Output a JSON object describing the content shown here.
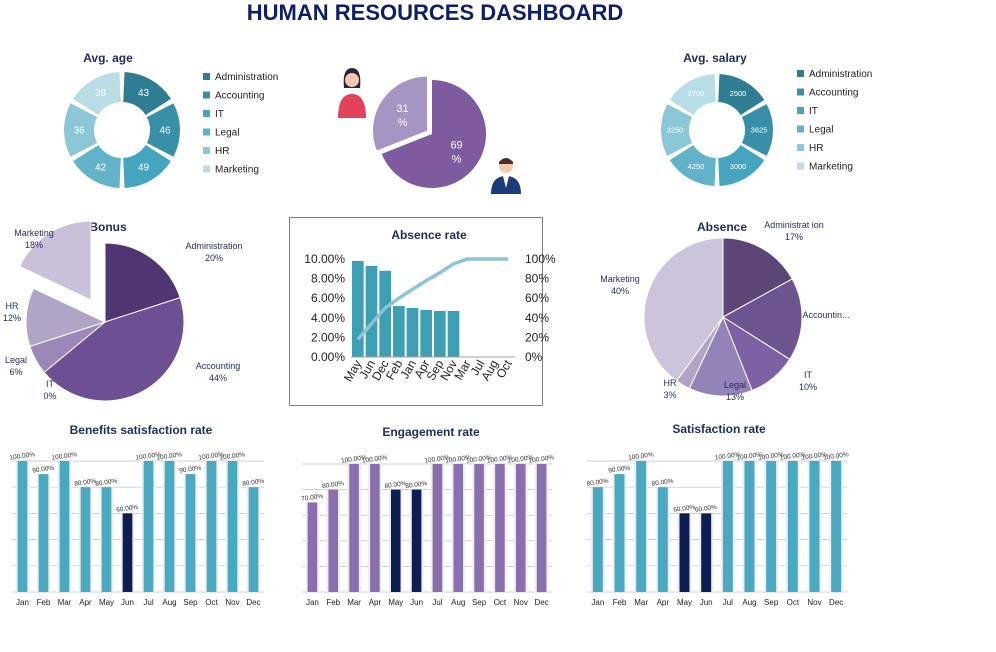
{
  "dashboard": {
    "title": "HUMAN RESOURCES DASHBOARD"
  },
  "chart_data": [
    {
      "id": "avg_age",
      "type": "doughnut",
      "title": "Avg. age",
      "categories": [
        "Administration",
        "Accounting",
        "IT",
        "Legal",
        "HR",
        "Marketing"
      ],
      "values": [
        43,
        46,
        49,
        42,
        36,
        38
      ],
      "colors": [
        "#2f7d93",
        "#3a8fa8",
        "#45a5bf",
        "#62b3c9",
        "#8cc7d7",
        "#b9dde7"
      ],
      "legend": "right"
    },
    {
      "id": "gender",
      "type": "pie",
      "title": "",
      "values": [
        69,
        31
      ],
      "labels": [
        "69 %",
        "31 %"
      ],
      "colors": [
        "#7d5b9e",
        "#a694c2"
      ]
    },
    {
      "id": "avg_salary",
      "type": "doughnut",
      "title": "Avg. salary",
      "categories": [
        "Administration",
        "Accounting",
        "IT",
        "Legal",
        "HR",
        "Marketing"
      ],
      "values": [
        2500,
        3625,
        3000,
        4250,
        3250,
        2700
      ],
      "colors": [
        "#2f7d93",
        "#3a8fa8",
        "#45a5bf",
        "#62b3c9",
        "#8cc7d7",
        "#b9dde7"
      ],
      "legend": "right"
    },
    {
      "id": "bonus",
      "type": "pie",
      "title": "Bonus",
      "categories": [
        "Administration",
        "Accounting",
        "IT",
        "Legal",
        "HR",
        "Marketing"
      ],
      "values": [
        20,
        44,
        0,
        6,
        12,
        18
      ],
      "labels": [
        "20%",
        "44%",
        "0%",
        "6%",
        "12%",
        "18%"
      ],
      "colors": [
        "#4f3572",
        "#6d4f94",
        "#82659f",
        "#9c88b8",
        "#b1a5c7",
        "#c9c0d9"
      ]
    },
    {
      "id": "absence_rate",
      "type": "bar",
      "title": "Absence rate",
      "categories": [
        "May",
        "Jun",
        "Dec",
        "Feb",
        "Jan",
        "Apr",
        "Sep",
        "Nov",
        "Mar",
        "Jul",
        "Aug",
        "Oct"
      ],
      "values": [
        9.8,
        9.3,
        8.8,
        5.2,
        5.0,
        4.8,
        4.7,
        4.7,
        0,
        0,
        0,
        0
      ],
      "cumulative": [
        18,
        34,
        50,
        60,
        69,
        78,
        86,
        95,
        100,
        100,
        100,
        100
      ],
      "yticks_left": [
        "0.00%",
        "2.00%",
        "4.00%",
        "6.00%",
        "8.00%",
        "10.00%"
      ],
      "yticks_right": [
        "0%",
        "20%",
        "40%",
        "60%",
        "80%",
        "100%"
      ],
      "ylim": [
        0,
        10
      ],
      "y2lim": [
        0,
        100
      ],
      "bar_color": "#3e9eb3",
      "line_color": "#8cc3d6"
    },
    {
      "id": "absence",
      "type": "pie",
      "title": "Absence",
      "categories": [
        "Administrat ion",
        "Accountin...",
        "IT",
        "Legal",
        "HR",
        "Marketing"
      ],
      "values": [
        17,
        17,
        10,
        13,
        3,
        40
      ],
      "labels": [
        "17%",
        "",
        "10%",
        "13%",
        "3%",
        "40%"
      ],
      "colors": [
        "#5c4577",
        "#6d5591",
        "#7c62a5",
        "#9483b6",
        "#b1a5c7",
        "#ccc4da"
      ]
    },
    {
      "id": "benefits",
      "type": "bar",
      "title": "Benefits satisfaction rate",
      "categories": [
        "Jan",
        "Feb",
        "Mar",
        "Apr",
        "May",
        "Jun",
        "Jul",
        "Aug",
        "Sep",
        "Oct",
        "Nov",
        "Dec"
      ],
      "values": [
        100,
        90,
        100,
        80,
        80,
        60,
        100,
        100,
        90,
        100,
        100,
        80
      ],
      "data_labels": [
        "100.00%",
        "90.00%",
        "100.00%",
        "80.00%",
        "80.00%",
        "60.00%",
        "100.00%",
        "100.00%",
        "90.00%",
        "100.00%",
        "100.00%",
        "80.00%"
      ],
      "ylim": [
        0,
        100
      ],
      "bar_color": "#4aa8c1",
      "highlight_color": "#0d1f52",
      "highlight_index": [
        5
      ],
      "gridlines": true
    },
    {
      "id": "engagement",
      "type": "bar",
      "title": "Engagement rate",
      "categories": [
        "Jan",
        "Feb",
        "Mar",
        "Apr",
        "May",
        "Jun",
        "Jul",
        "Aug",
        "Sep",
        "Oct",
        "Nov",
        "Dec"
      ],
      "values": [
        70,
        80,
        100,
        100,
        80,
        80,
        100,
        100,
        100,
        100,
        100,
        100
      ],
      "data_labels": [
        "70.00%",
        "80.00%",
        "100.00%",
        "100.00%",
        "80.00%",
        "80.00%",
        "100.00%",
        "100.00%",
        "100.00%",
        "100.00%",
        "100.00%",
        "100.00%"
      ],
      "ylim": [
        0,
        100
      ],
      "bar_color": "#8a6fae",
      "highlight_color": "#0d1f52",
      "highlight_index": [
        4,
        5
      ],
      "gridlines": true
    },
    {
      "id": "satisfaction",
      "type": "bar",
      "title": "Satisfaction rate",
      "categories": [
        "Jan",
        "Feb",
        "Mar",
        "Apr",
        "May",
        "Jun",
        "Jul",
        "Aug",
        "Sep",
        "Oct",
        "Nov",
        "Dec"
      ],
      "values": [
        80,
        90,
        100,
        80,
        60,
        60,
        100,
        100,
        100,
        100,
        100,
        100
      ],
      "data_labels": [
        "80.00%",
        "90.00%",
        "100.00%",
        "80.00%",
        "60.00%",
        "60.00%",
        "100.00%",
        "100.00%",
        "100.00%",
        "100.00%",
        "100.00%",
        "100.00%"
      ],
      "ylim": [
        0,
        100
      ],
      "bar_color": "#4aa8c1",
      "highlight_color": "#0d1f52",
      "highlight_index": [
        4,
        5
      ],
      "gridlines": true
    }
  ],
  "icons": [
    "woman-icon",
    "man-icon"
  ]
}
